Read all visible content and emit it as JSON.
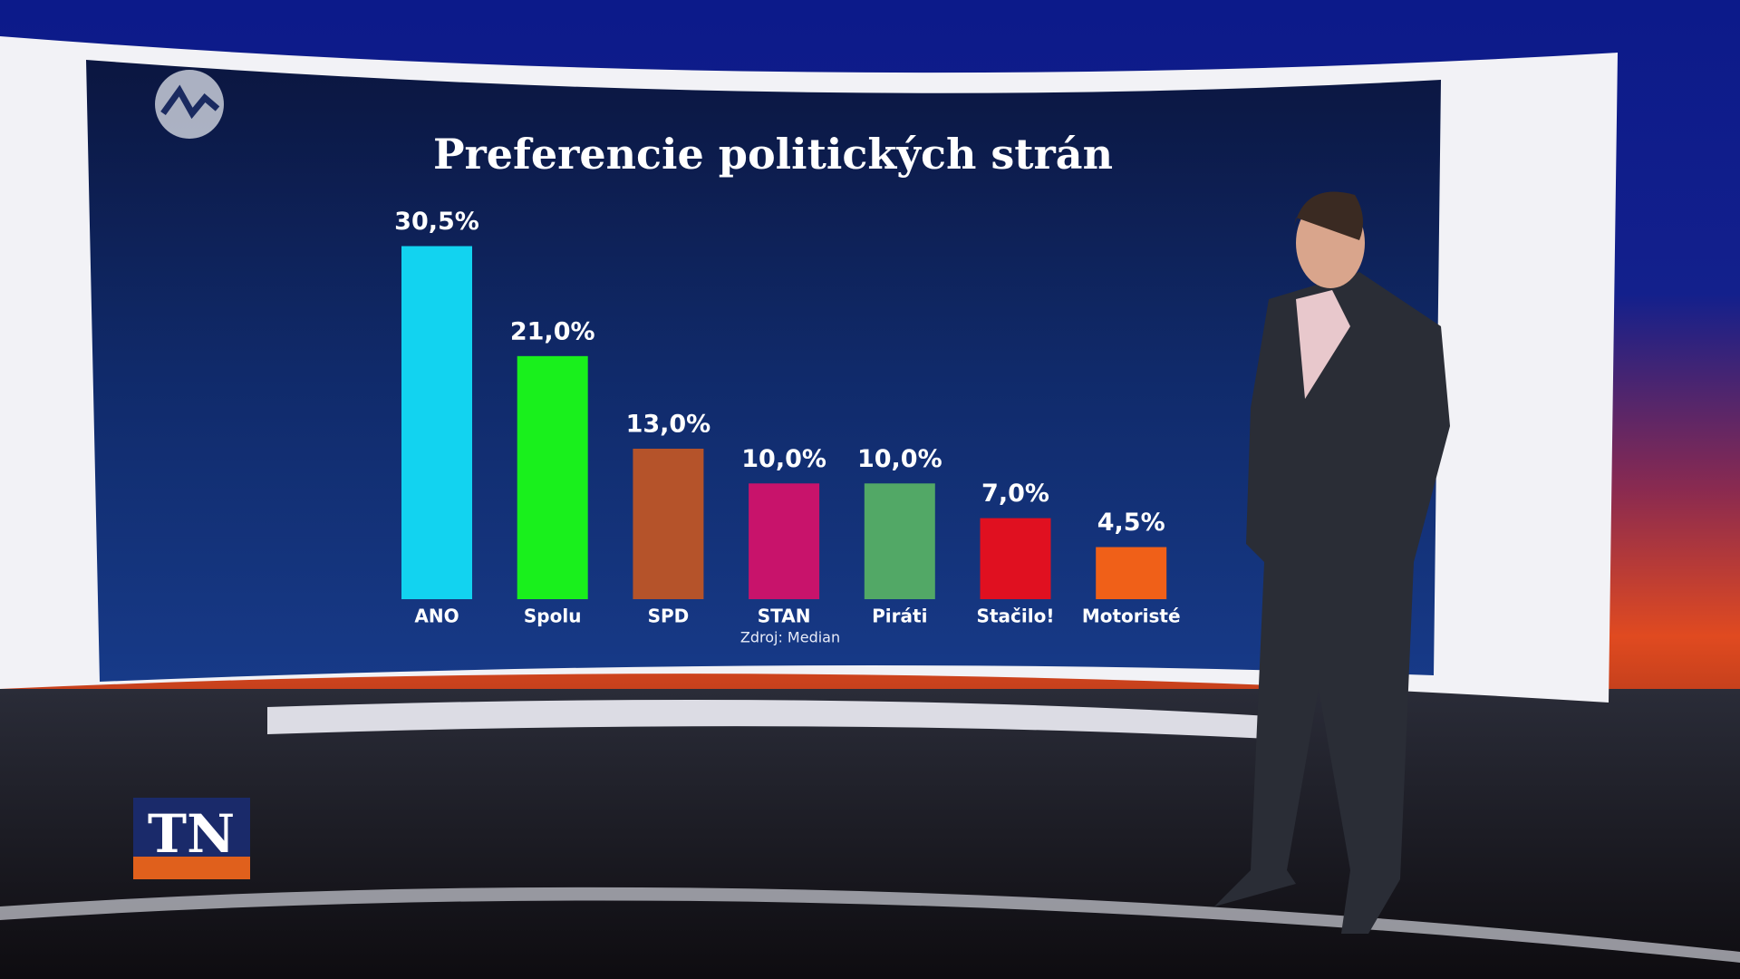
{
  "chart_data": {
    "type": "bar",
    "title": "Preferencie politických strán",
    "categories": [
      "ANO",
      "Spolu",
      "SPD",
      "STAN",
      "Piráti",
      "Stačilo!",
      "Motoristé"
    ],
    "values": [
      30.5,
      21.0,
      13.0,
      10.0,
      10.0,
      7.0,
      4.5
    ],
    "value_labels": [
      "30,5%",
      "21,0%",
      "13,0%",
      "10,0%",
      "10,0%",
      "7,0%",
      "4,5%"
    ],
    "colors": [
      "#12d3f0",
      "#19f01c",
      "#b5532a",
      "#c8136b",
      "#52a866",
      "#e01020",
      "#f06018"
    ],
    "source": "Zdroj: Median"
  },
  "channel_logo": "TN"
}
